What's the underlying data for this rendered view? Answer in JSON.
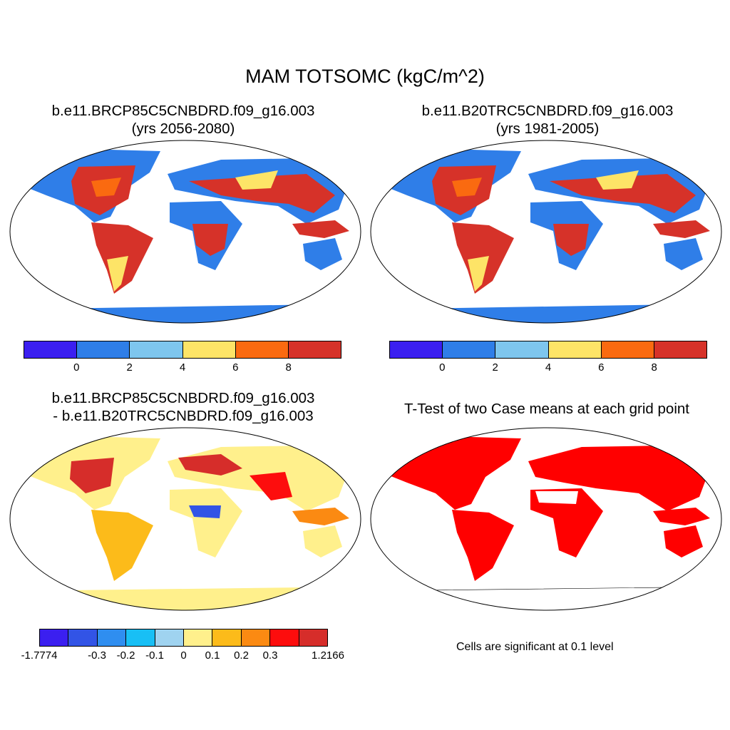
{
  "main_title": "MAM TOTSOMC (kgC/m^2)",
  "panels": {
    "top_left": {
      "title_line1": "b.e11.BRCP85C5CNBDRD.f09_g16.003",
      "title_line2": "(yrs 2056-2080)"
    },
    "top_right": {
      "title_line1": "b.e11.B20TRC5CNBDRD.f09_g16.003",
      "title_line2": "(yrs 1981-2005)"
    },
    "bottom_left": {
      "title_line1": "b.e11.BRCP85C5CNBDRD.f09_g16.003",
      "title_line2": "- b.e11.B20TRC5CNBDRD.f09_g16.003"
    },
    "bottom_right": {
      "title_line1": "T-Test of two Case means at each grid point",
      "note": "Cells are significant at 0.1 level"
    }
  },
  "colorbars": {
    "absolute": {
      "colors": [
        "#3b1ff0",
        "#2f7ee8",
        "#7ec6ee",
        "#fde467",
        "#fa6a10",
        "#d63229"
      ],
      "labels": [
        "0",
        "2",
        "4",
        "6",
        "8"
      ]
    },
    "difference": {
      "colors": [
        "#3b1ff0",
        "#3254e6",
        "#2f8ef0",
        "#18bff5",
        "#9fd3f0",
        "#fff08c",
        "#fcbb1a",
        "#fb8a12",
        "#fd0d0d",
        "#d62d2a"
      ],
      "labels": [
        "-1.7774",
        "-0.3",
        "-0.2",
        "-0.1",
        "0",
        "0.1",
        "0.2",
        "0.3",
        "1.2166"
      ]
    }
  },
  "colors": {
    "ocean": "#ffffff",
    "land_low": "#2f7ee8",
    "land_mid": "#fde467",
    "land_high": "#d63229",
    "antarctica_diff": "#fff08c",
    "significant": "#ff0000"
  }
}
